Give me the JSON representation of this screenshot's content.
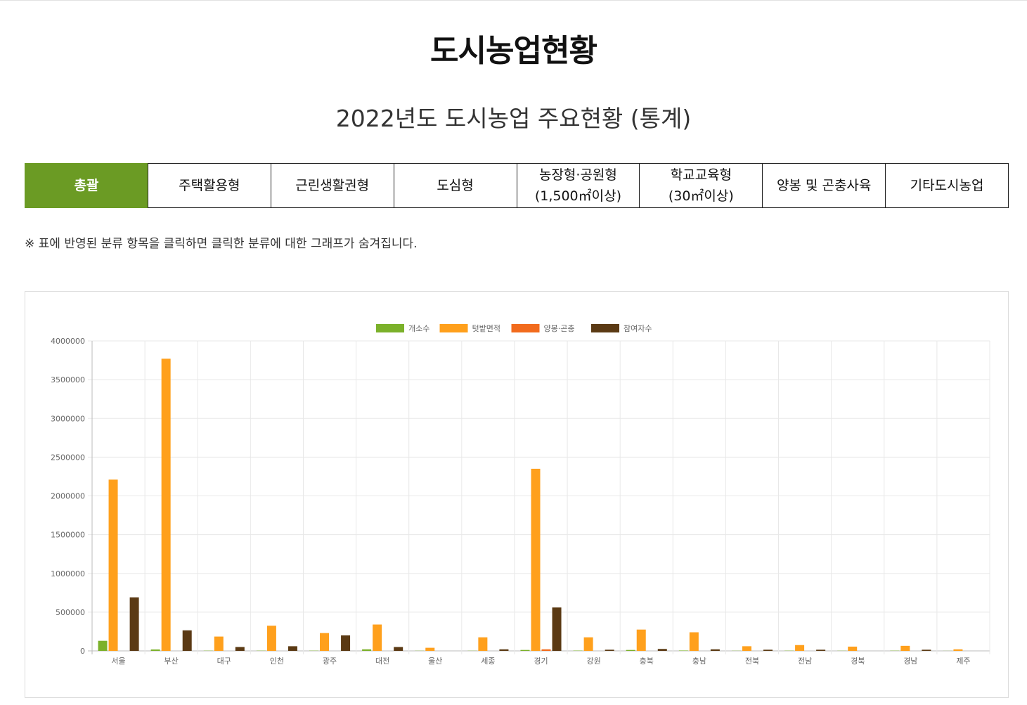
{
  "header": {
    "title": "도시농업현황",
    "subtitle": "2022년도 도시농업 주요현황 (통계)"
  },
  "tabs": [
    {
      "label": "총괄",
      "active": true
    },
    {
      "label": "주택활용형"
    },
    {
      "label": "근린생활권형"
    },
    {
      "label": "도심형"
    },
    {
      "label": "농장형·공원형",
      "sub": "(1,500㎡이상)"
    },
    {
      "label": "학교교육형",
      "sub": "(30㎡이상)"
    },
    {
      "label": "양봉 및 곤충사육"
    },
    {
      "label": "기타도시농업"
    }
  ],
  "notice": "※ 표에 반영된 분류 항목을 클릭하면 클릭한 분류에 대한 그래프가 숨겨집니다.",
  "colors": {
    "accent": "#6b9b24",
    "series": [
      "#7bb12a",
      "#ffa01c",
      "#f26b1d",
      "#5b3a14"
    ]
  },
  "chart_data": {
    "type": "bar",
    "categories": [
      "서울",
      "부산",
      "대구",
      "인천",
      "광주",
      "대전",
      "울산",
      "세종",
      "경기",
      "강원",
      "충북",
      "충남",
      "전북",
      "전남",
      "경북",
      "경남",
      "제주"
    ],
    "series": [
      {
        "name": "개소수",
        "values": [
          130000,
          18000,
          3000,
          3000,
          3000,
          20000,
          2000,
          2000,
          12000,
          4000,
          12000,
          5000,
          2000,
          3000,
          2000,
          3000,
          1000
        ]
      },
      {
        "name": "텃밭면적",
        "values": [
          2210000,
          3770000,
          185000,
          325000,
          230000,
          340000,
          40000,
          175000,
          2350000,
          175000,
          275000,
          240000,
          60000,
          75000,
          55000,
          65000,
          20000
        ]
      },
      {
        "name": "양봉·곤충",
        "values": [
          0,
          0,
          0,
          0,
          0,
          0,
          0,
          0,
          20000,
          0,
          0,
          0,
          0,
          0,
          0,
          0,
          0
        ]
      },
      {
        "name": "참여자수",
        "values": [
          690000,
          265000,
          50000,
          60000,
          200000,
          50000,
          0,
          20000,
          560000,
          15000,
          25000,
          20000,
          15000,
          15000,
          0,
          15000,
          0
        ]
      }
    ],
    "yticks": [
      "4000000",
      "3500000",
      "3000000",
      "2500000",
      "2000000",
      "1500000",
      "1000000",
      "500000",
      "0"
    ],
    "ylim": [
      0,
      4000000
    ],
    "legend_position": "top",
    "grid": true
  }
}
